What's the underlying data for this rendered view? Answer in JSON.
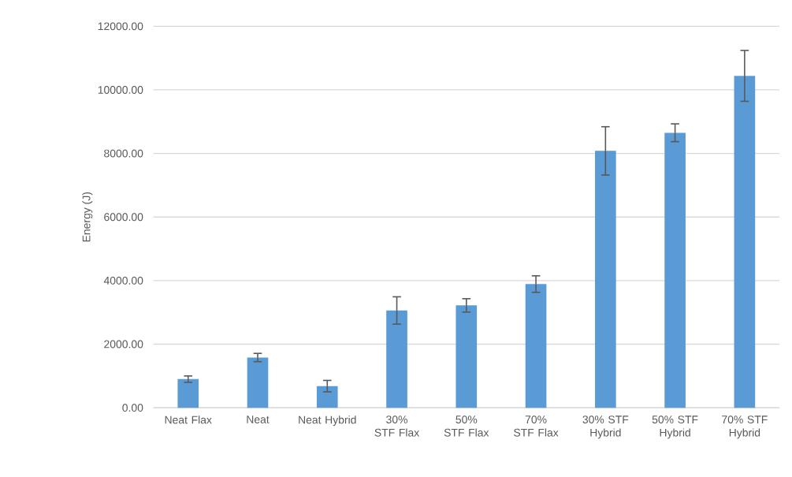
{
  "chart_data": {
    "type": "bar",
    "ylabel": "Energy (J)",
    "categories": [
      "Neat Flax",
      "Neat",
      "Neat Hybrid",
      "30% STF Flax",
      "50% STF Flax",
      "70% STF Flax",
      "30% STF Hybrid",
      "50% STF Hybrid",
      "70% STF Hybrid"
    ],
    "values": [
      900,
      1580,
      680,
      3060,
      3220,
      3890,
      8080,
      8650,
      10440
    ],
    "errors": [
      100,
      130,
      180,
      430,
      210,
      260,
      760,
      280,
      800
    ],
    "color": "#5b9bd5",
    "ylim": [
      0,
      12000
    ],
    "yticks": [
      {
        "value": 0,
        "label": "0.00"
      },
      {
        "value": 2000,
        "label": "2000.00"
      },
      {
        "value": 4000,
        "label": "4000.00"
      },
      {
        "value": 6000,
        "label": "6000.00"
      },
      {
        "value": 8000,
        "label": "8000.00"
      },
      {
        "value": 10000,
        "label": "10000.00"
      },
      {
        "value": 12000,
        "label": "12000.00"
      }
    ],
    "grid": "y"
  }
}
